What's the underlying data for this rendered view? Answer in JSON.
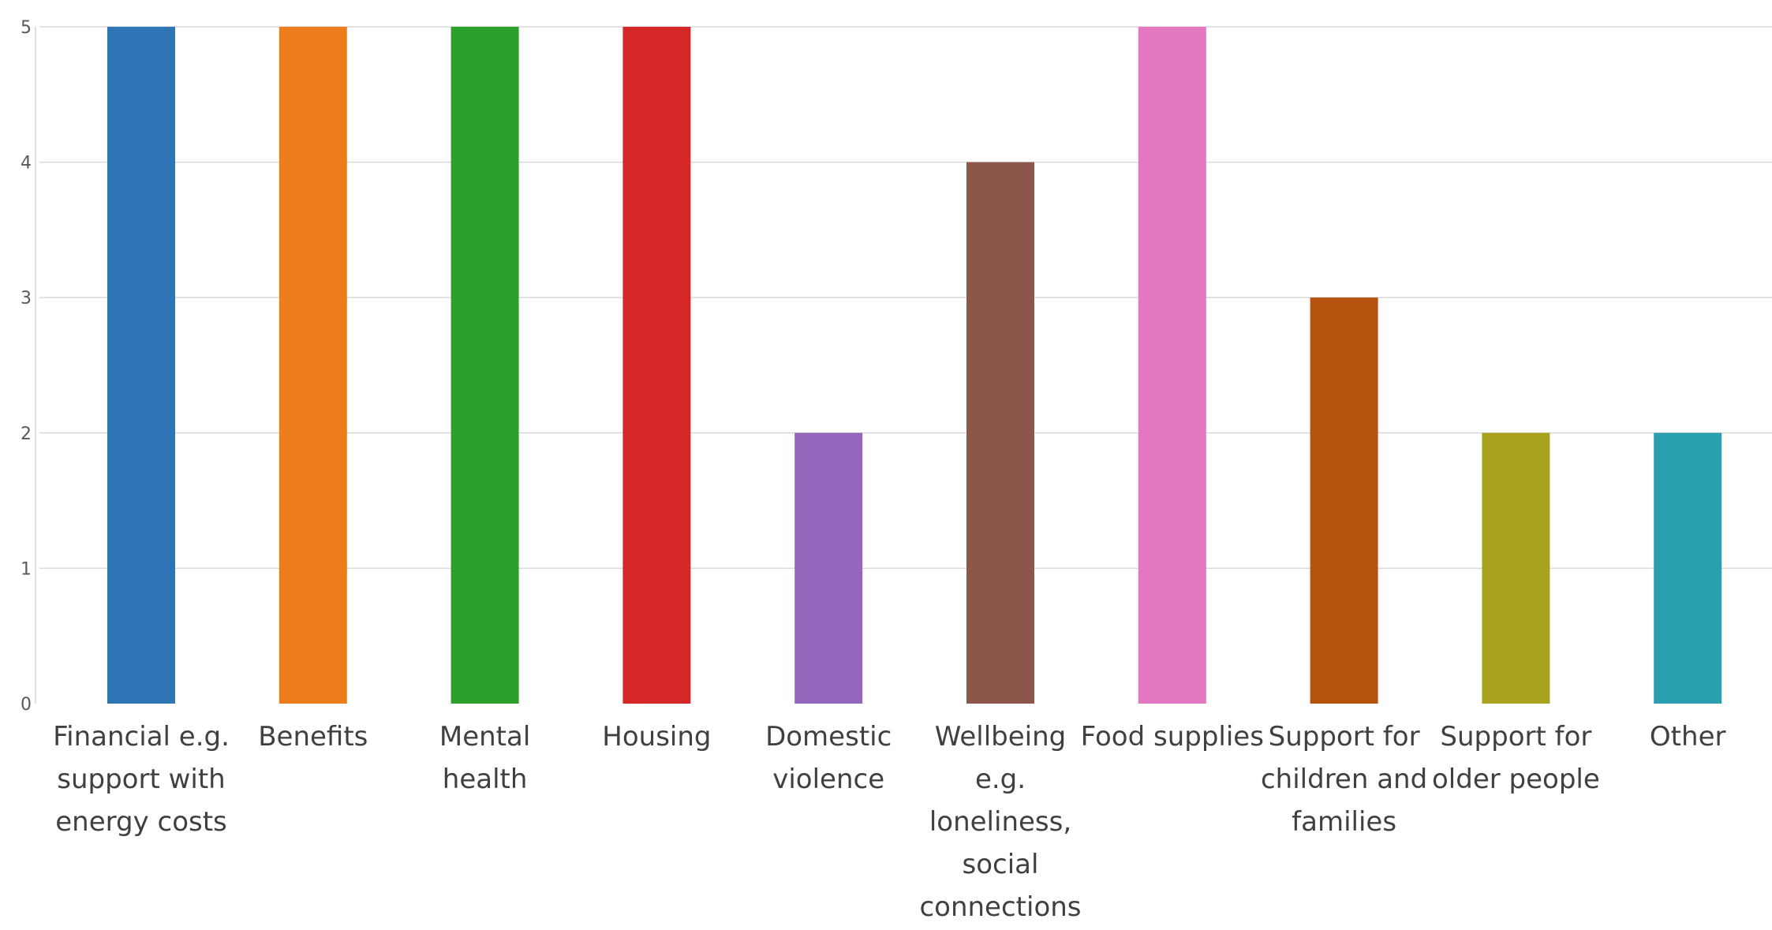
{
  "chart_data": {
    "type": "bar",
    "title": "",
    "xlabel": "",
    "ylabel": "",
    "ylim": [
      0,
      5
    ],
    "yticks": [
      "0",
      "1",
      "2",
      "3",
      "4",
      "5"
    ],
    "grid": true,
    "legend": "none",
    "categories": [
      [
        "Financial e.g.",
        "support with",
        "energy costs"
      ],
      [
        "Benefits"
      ],
      [
        "Mental",
        "health"
      ],
      [
        "Housing"
      ],
      [
        "Domestic",
        "violence"
      ],
      [
        "Wellbeing",
        "e.g.",
        "loneliness,",
        "social",
        "connections"
      ],
      [
        "Food supplies"
      ],
      [
        "Support for",
        "children and",
        "families"
      ],
      [
        "Support for",
        "older people"
      ],
      [
        "Other"
      ]
    ],
    "values": [
      5,
      5,
      5,
      5,
      2,
      4,
      5,
      3,
      2,
      2
    ],
    "colors": [
      "#2e75b6",
      "#ed7d1c",
      "#2ca02c",
      "#d62728",
      "#9467bd",
      "#8c564b",
      "#e377c2",
      "#b5530e",
      "#a8a21e",
      "#2a9fb0"
    ]
  }
}
